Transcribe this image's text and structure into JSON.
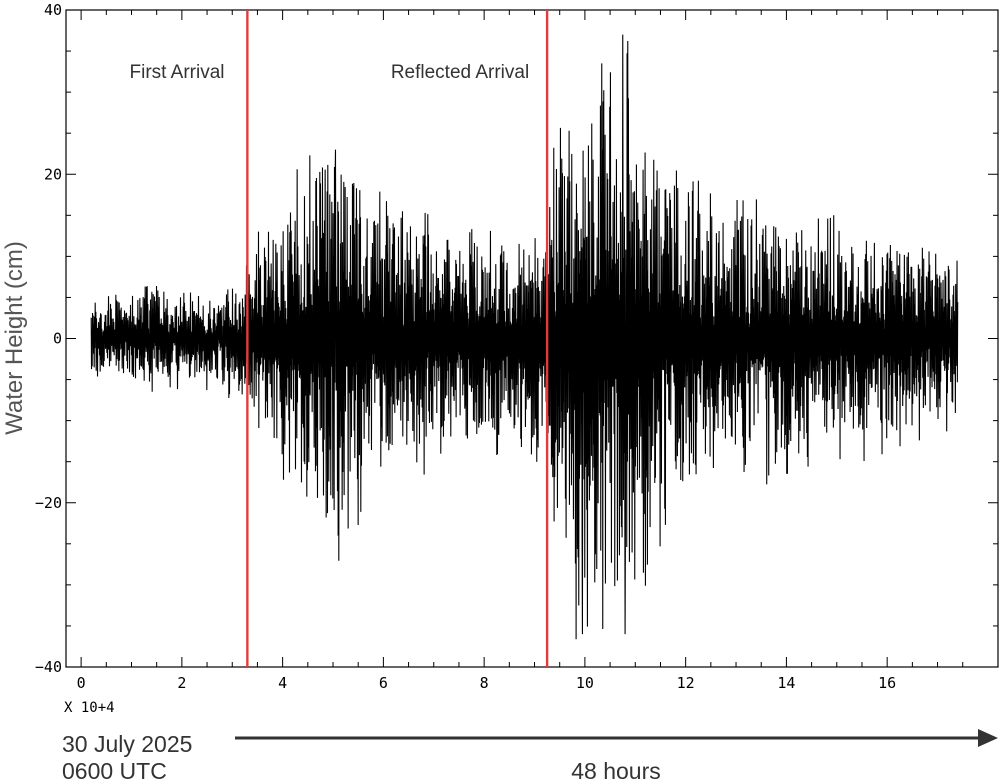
{
  "chart_data": {
    "type": "line",
    "ylabel": "Water Height (cm)",
    "x_multiplier": "X 10+4",
    "xlim": [
      -0.3,
      18.2
    ],
    "ylim": [
      -40,
      40
    ],
    "x_ticks": [
      0,
      2,
      4,
      6,
      8,
      10,
      12,
      14,
      16
    ],
    "y_ticks": [
      -40,
      -20,
      0,
      20,
      40
    ],
    "annotations": [
      {
        "label": "First Arrival",
        "x": 3.3
      },
      {
        "label": "Reflected Arrival",
        "x": 9.25
      }
    ],
    "marker_color": "#e03c3c",
    "series": [
      {
        "x": [
          0.2,
          1.3,
          2.5,
          3.2,
          3.6,
          4.4,
          5.0,
          5.3,
          6.0,
          7.0,
          8.0,
          9.0,
          9.3,
          9.8,
          10.3,
          10.8,
          11.5,
          12.5,
          13.5,
          14.5,
          15.5,
          16.5,
          17.4
        ],
        "envelope": [
          4,
          6,
          5,
          6,
          12,
          18,
          22,
          20,
          14,
          13,
          12,
          12,
          18,
          30,
          33,
          30,
          20,
          14,
          14,
          13,
          12,
          11,
          9
        ]
      }
    ],
    "extremes": [
      {
        "x": 10.75,
        "y": 37
      },
      {
        "x": 10.8,
        "y": -36
      },
      {
        "x": 9.95,
        "y": -36
      },
      {
        "x": 5.1,
        "y": -24
      },
      {
        "x": 5.05,
        "y": 23
      }
    ],
    "line_color": "#000000",
    "grid": false
  },
  "footer": {
    "date": "30 July 2025",
    "time": "0600 UTC",
    "duration": "48 hours"
  }
}
